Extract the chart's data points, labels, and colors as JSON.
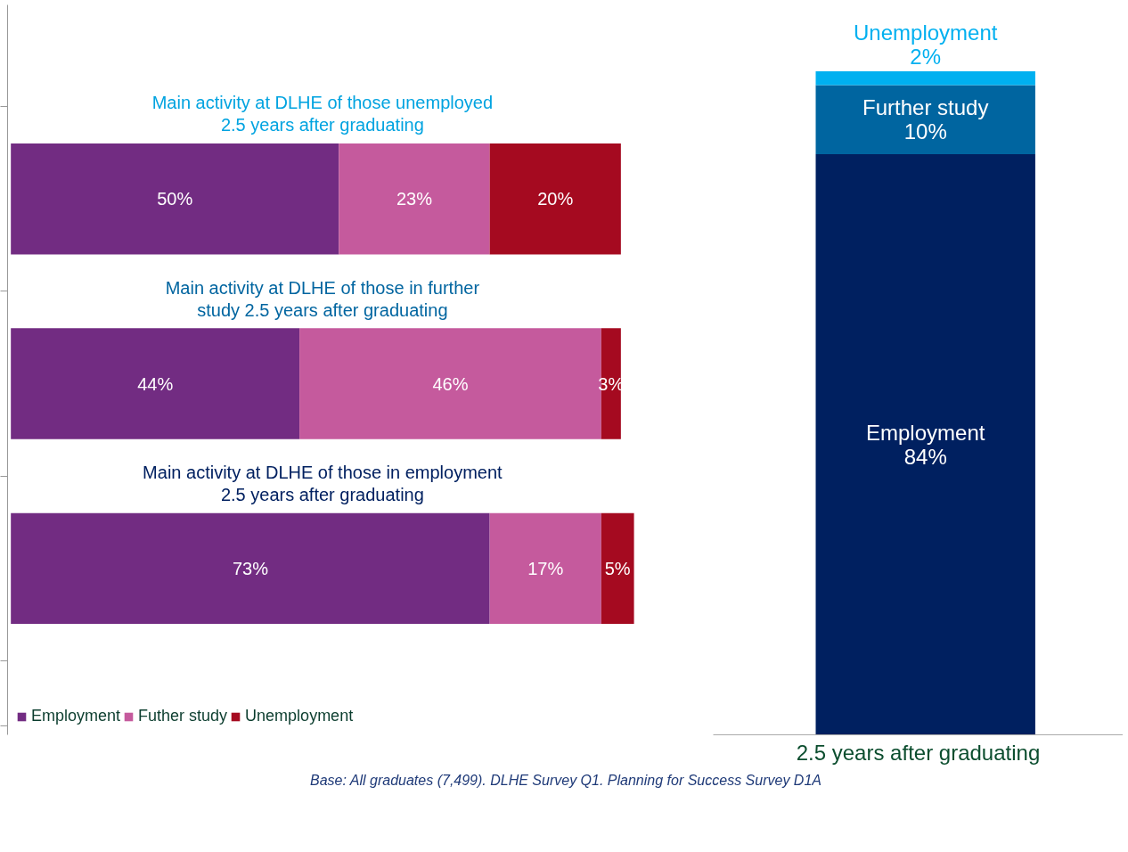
{
  "chart_data": [
    {
      "type": "bar",
      "orientation": "horizontal",
      "stacked": true,
      "legend": "bottom left",
      "grid": false,
      "tick_labels": false,
      "categories": [
        "Main activity at DLHE of those unemployed 2.5 years after graduating",
        "Main activity at DLHE of those in further study 2.5 years after graduating",
        "Main activity at DLHE of those in employment 2.5 years after graduating"
      ],
      "series": [
        {
          "name": "Employment",
          "color": "#722c82",
          "values": [
            50,
            44,
            73
          ],
          "value_labels": [
            "50%",
            "44%",
            "73%"
          ]
        },
        {
          "name": "Futher study",
          "color": "#c55a9d",
          "values": [
            23,
            46,
            17
          ],
          "value_labels": [
            "23%",
            "46%",
            "17%"
          ]
        },
        {
          "name": "Unemployment",
          "color": "#a50a20",
          "values": [
            20,
            3,
            5
          ],
          "value_labels": [
            "20%",
            "3%",
            "5%"
          ]
        }
      ],
      "annotations": [
        "Base: All graduates (7,499). DLHE Survey Q1. Planning for Success Survey D1A"
      ]
    },
    {
      "type": "bar",
      "stacked": true,
      "legend": false,
      "grid": false,
      "tick_labels": "x",
      "categories": [
        null
      ],
      "xlabel": "2.5 years after graduating",
      "series": [
        {
          "name": "Employment",
          "color": "#002060",
          "values": [
            84
          ],
          "value_labels": [
            "84%"
          ]
        },
        {
          "name": "Further study",
          "color": "#0065a0",
          "values": [
            10
          ],
          "value_labels": [
            "10%"
          ]
        },
        {
          "name": "Unemployment",
          "color": "#00b0f0",
          "values": [
            2
          ],
          "value_labels": [
            "2%"
          ]
        }
      ]
    }
  ]
}
